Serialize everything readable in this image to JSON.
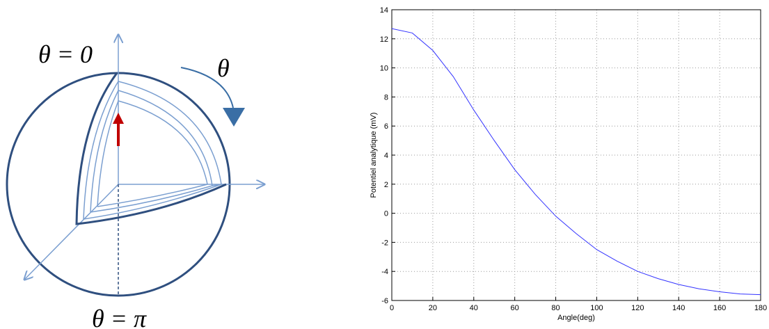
{
  "diagram": {
    "labels": [
      "θ = 0",
      "θ",
      "θ = π"
    ]
  },
  "chart_data": {
    "type": "line",
    "xlabel": "Angle(deg)",
    "ylabel": "Potentiel analytique (mV)",
    "x": [
      0,
      10,
      20,
      30,
      40,
      50,
      60,
      70,
      80,
      90,
      100,
      110,
      120,
      130,
      140,
      150,
      160,
      170,
      180
    ],
    "series": [
      {
        "color": "#3333ff",
        "values": [
          12.7,
          12.4,
          11.2,
          9.4,
          7.1,
          5.0,
          3.0,
          1.3,
          -0.2,
          -1.4,
          -2.5,
          -3.3,
          -4.0,
          -4.5,
          -4.9,
          -5.2,
          -5.4,
          -5.55,
          -5.6
        ]
      }
    ],
    "xlim": [
      0,
      180
    ],
    "ylim": [
      -6,
      14
    ],
    "xticks": [
      0,
      20,
      40,
      60,
      80,
      100,
      120,
      140,
      160,
      180
    ],
    "yticks": [
      -6,
      -4,
      -2,
      0,
      2,
      4,
      6,
      8,
      10,
      12,
      14
    ],
    "grid": true
  }
}
